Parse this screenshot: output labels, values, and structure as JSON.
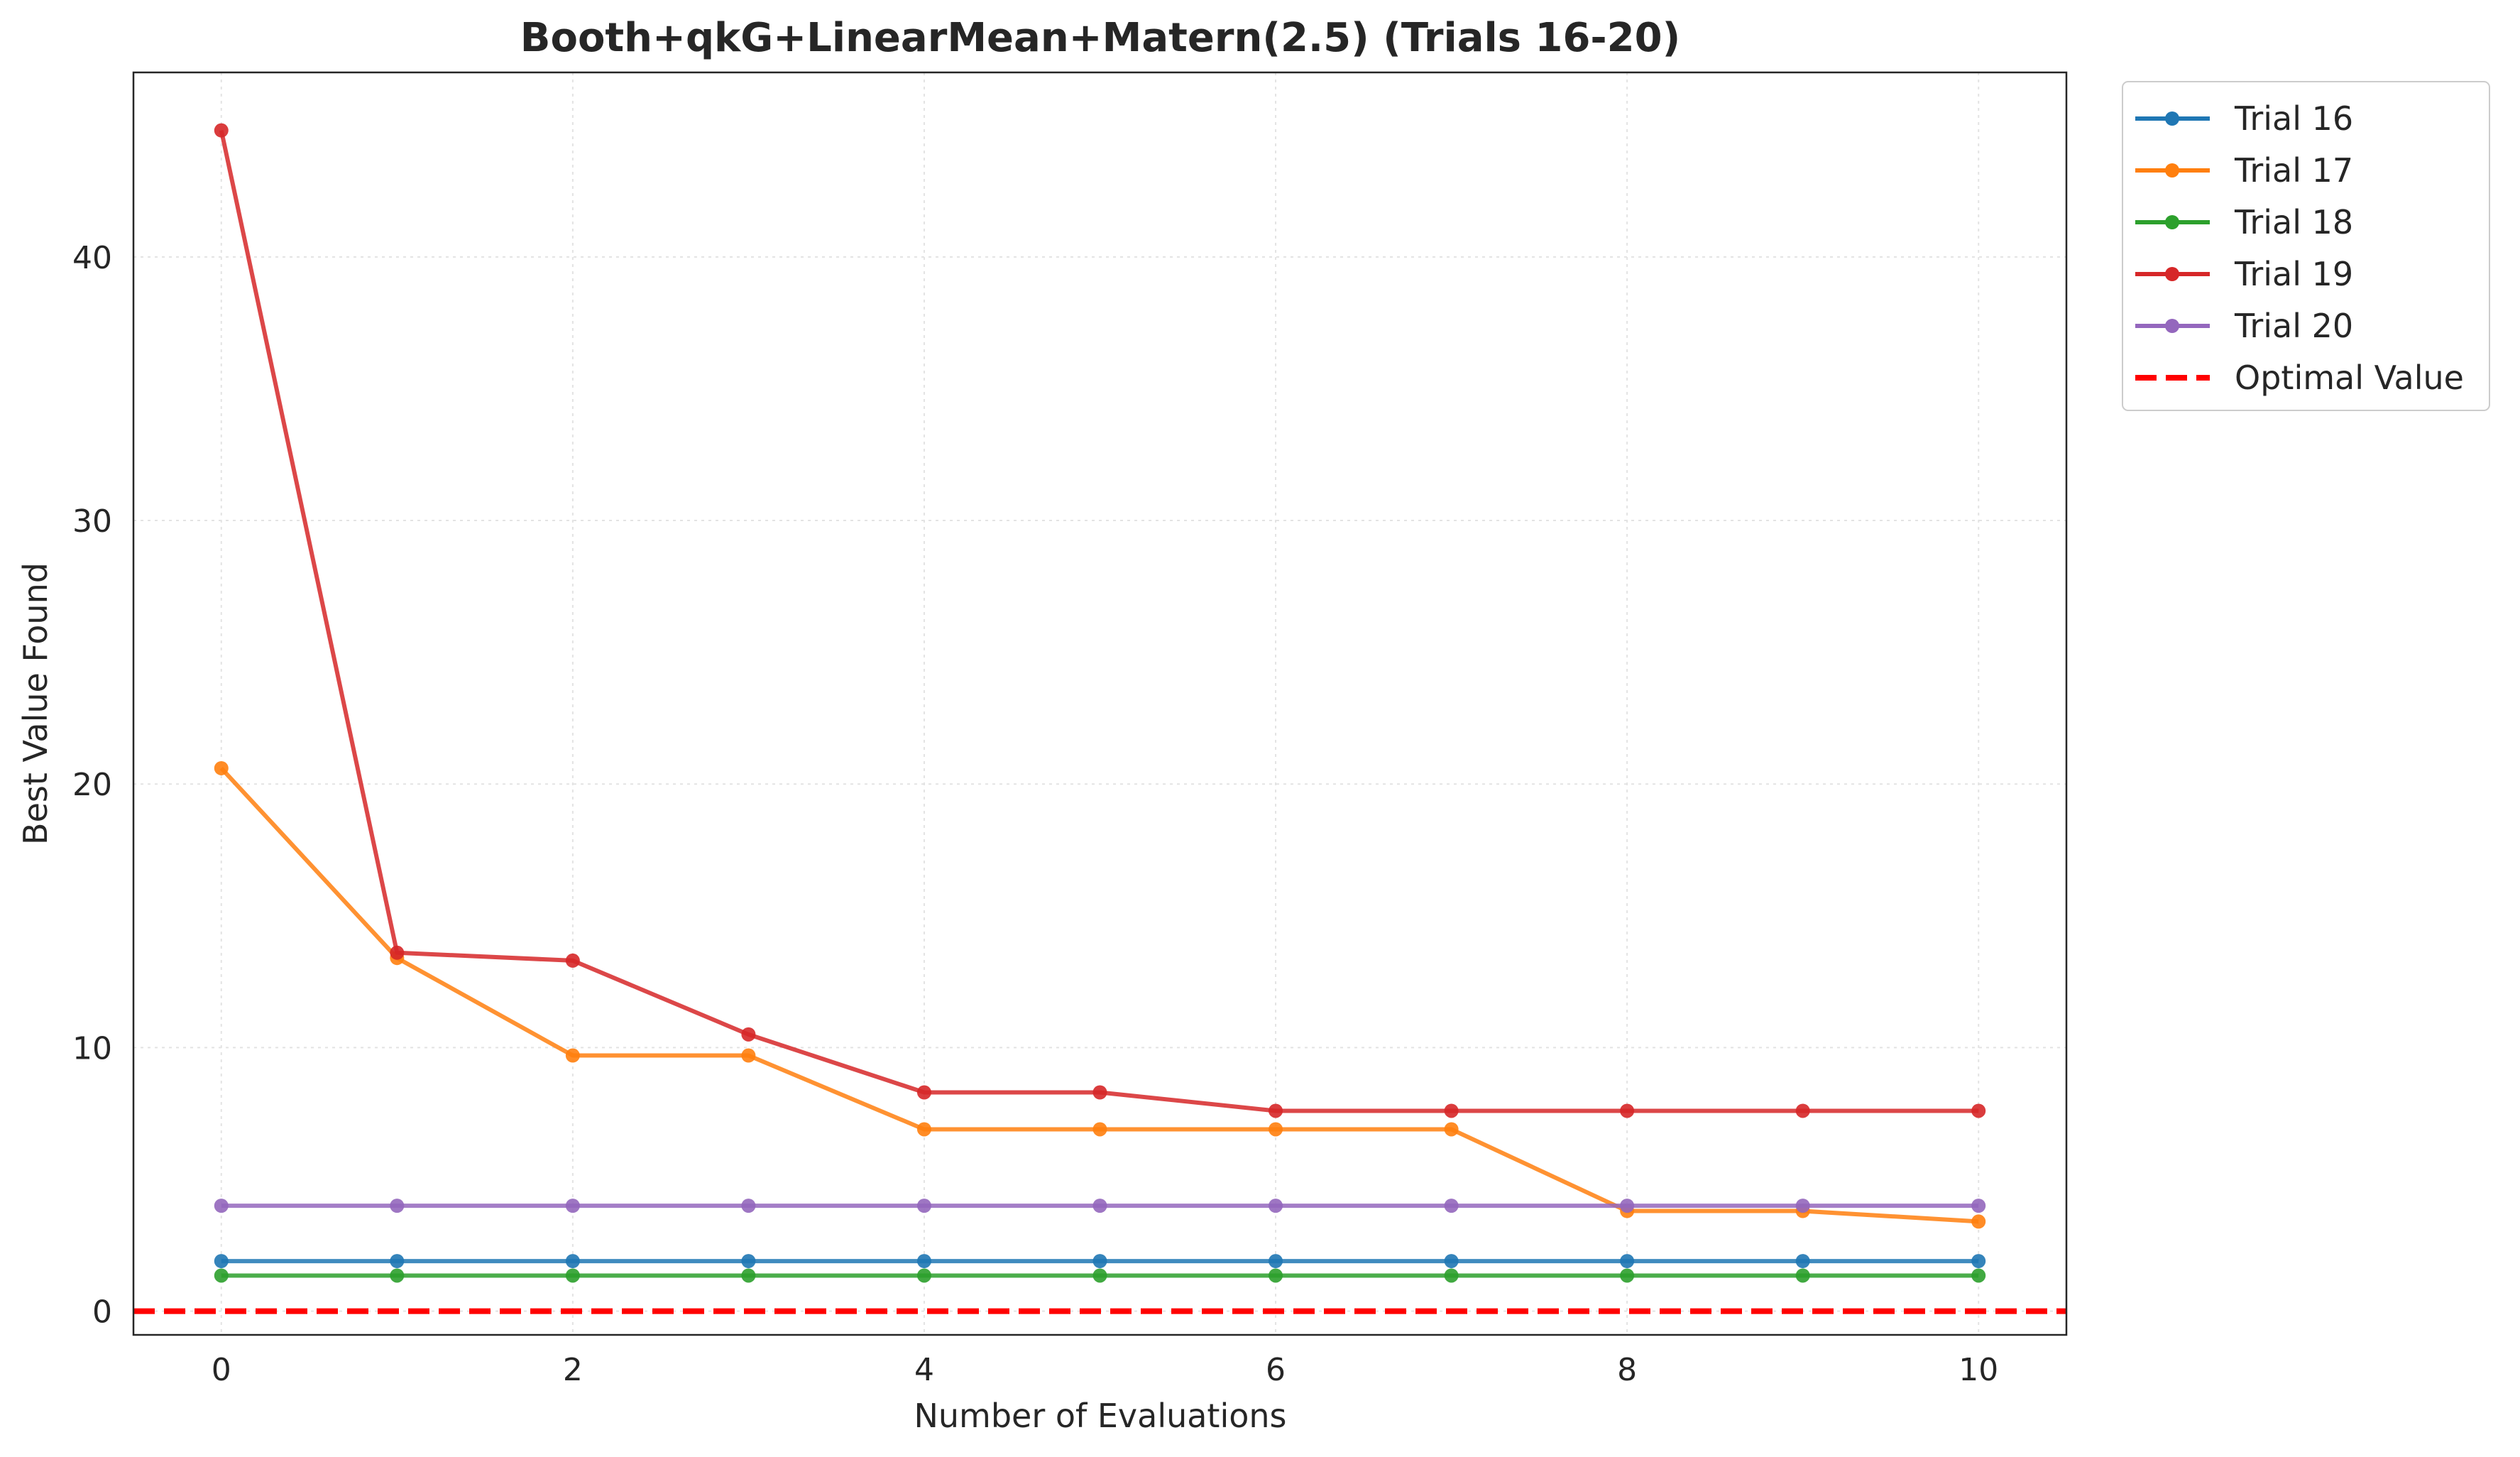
{
  "chart_data": {
    "type": "line",
    "title": "Booth+qkG+LinearMean+Matern(2.5) (Trials 16-20)",
    "xlabel": "Number of Evaluations",
    "ylabel": "Best Value Found",
    "xlim": [
      -0.5,
      10.5
    ],
    "ylim": [
      -0.9,
      47.0
    ],
    "xticks": [
      0,
      2,
      4,
      6,
      8,
      10
    ],
    "yticks": [
      0,
      10,
      20,
      30,
      40
    ],
    "grid": true,
    "legend_position": "outside top-right",
    "x": [
      0,
      1,
      2,
      3,
      4,
      5,
      6,
      7,
      8,
      9,
      10
    ],
    "series": [
      {
        "name": "Trial 16",
        "color": "#1f77b4",
        "values": [
          1.9,
          1.9,
          1.9,
          1.9,
          1.9,
          1.9,
          1.9,
          1.9,
          1.9,
          1.9,
          1.9
        ]
      },
      {
        "name": "Trial 17",
        "color": "#ff7f0e",
        "values": [
          20.6,
          13.4,
          9.7,
          9.7,
          6.9,
          6.9,
          6.9,
          6.9,
          3.8,
          3.8,
          3.4
        ]
      },
      {
        "name": "Trial 18",
        "color": "#2ca02c",
        "values": [
          1.35,
          1.35,
          1.35,
          1.35,
          1.35,
          1.35,
          1.35,
          1.35,
          1.35,
          1.35,
          1.35
        ]
      },
      {
        "name": "Trial 19",
        "color": "#d62728",
        "values": [
          44.8,
          13.6,
          13.3,
          10.5,
          8.3,
          8.3,
          7.6,
          7.6,
          7.6,
          7.6,
          7.6
        ]
      },
      {
        "name": "Trial 20",
        "color": "#9467bd",
        "values": [
          4.0,
          4.0,
          4.0,
          4.0,
          4.0,
          4.0,
          4.0,
          4.0,
          4.0,
          4.0,
          4.0
        ]
      }
    ],
    "reference_line": {
      "name": "Optimal Value",
      "y": 0,
      "color": "#ff0000",
      "style": "dashed"
    }
  }
}
